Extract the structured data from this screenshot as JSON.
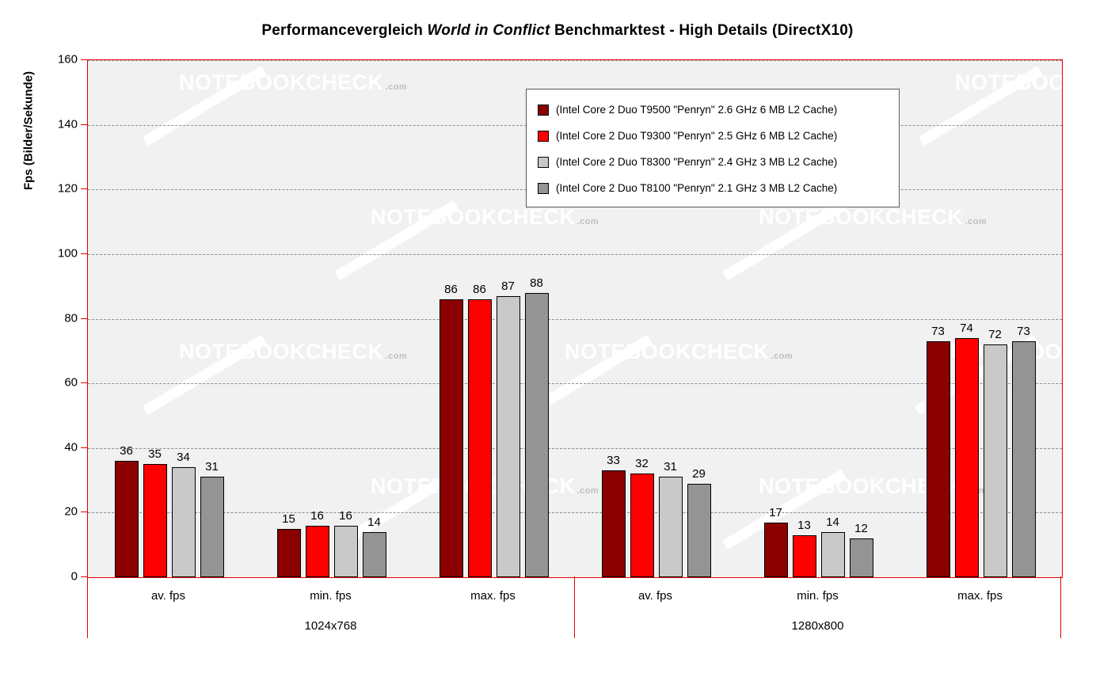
{
  "title": {
    "part1": "Performancevergleich ",
    "part2_italic": "World in Conflict",
    "part3": " Benchmarktest -  High Details (DirectX10)"
  },
  "watermark": {
    "text": "NOTEBOOKCHECK",
    "suffix": ".com"
  },
  "chart_data": {
    "type": "bar",
    "title": "Performancevergleich World in Conflict Benchmarktest - High Details (DirectX10)",
    "ylabel": "Fps (Bilder/Sekunde)",
    "xlabel": "",
    "ylim": [
      0,
      160
    ],
    "ytick_step": 20,
    "grid": "dashed-horizontal",
    "legend_position": "top-right-inside",
    "axis_color": "#e60000",
    "group_labels": [
      "1024x768",
      "1280x800"
    ],
    "categories": [
      "av. fps",
      "min. fps",
      "max. fps",
      "av. fps",
      "min. fps",
      "max. fps"
    ],
    "series": [
      {
        "name": "(Intel Core 2 Duo T9500 \"Penryn\" 2.6 GHz 6 MB L2 Cache)",
        "color": "#8b0000",
        "values": [
          36,
          15,
          86,
          33,
          17,
          73
        ]
      },
      {
        "name": "(Intel Core 2 Duo T9300 \"Penryn\" 2.5 GHz 6 MB L2 Cache)",
        "color": "#ff0000",
        "values": [
          35,
          16,
          86,
          32,
          13,
          74
        ]
      },
      {
        "name": "(Intel Core 2 Duo T8300 \"Penryn\" 2.4 GHz 3 MB L2 Cache)",
        "color": "#c9c9c9",
        "values": [
          34,
          16,
          87,
          31,
          14,
          72
        ]
      },
      {
        "name": "(Intel Core 2 Duo T8100 \"Penryn\" 2.1 GHz 3 MB L2 Cache)",
        "color": "#949494",
        "values": [
          31,
          14,
          88,
          29,
          12,
          73
        ]
      }
    ]
  }
}
